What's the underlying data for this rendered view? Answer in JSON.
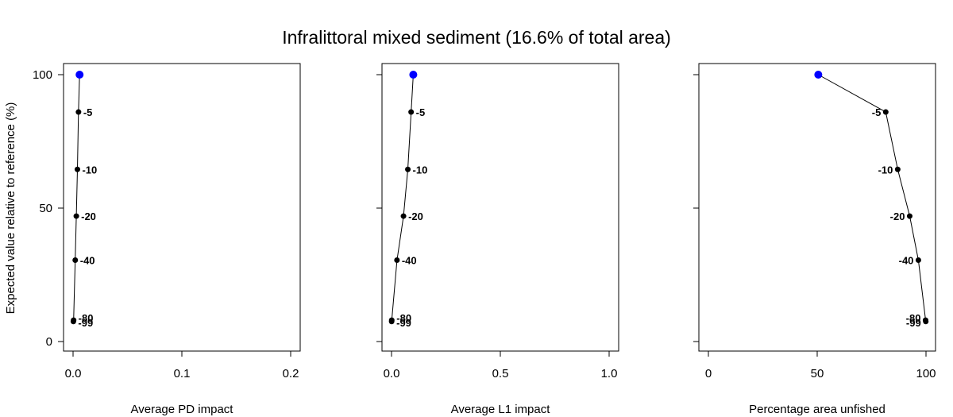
{
  "title": "Infralittoral mixed sediment (16.6% of total area)",
  "ylabel": "Expected value relative to reference (%)",
  "yticks": [
    "0",
    "50",
    "100"
  ],
  "colors": {
    "reference_point": "#0000ff",
    "points": "#000000",
    "line": "#000000"
  },
  "chart_data": [
    {
      "type": "line",
      "xlabel": "Average PD impact",
      "xlim": [
        0,
        0.2
      ],
      "ylim": [
        0,
        100
      ],
      "xticks": [
        "0.0",
        "0.1",
        "0.2"
      ],
      "reference": {
        "x": 0.006,
        "y": 100
      },
      "points": [
        {
          "label": "-5",
          "x": 0.005,
          "y": 86
        },
        {
          "label": "-10",
          "x": 0.004,
          "y": 64.5
        },
        {
          "label": "-20",
          "x": 0.003,
          "y": 47
        },
        {
          "label": "-40",
          "x": 0.002,
          "y": 30.5
        },
        {
          "label": "-80",
          "x": 0.0005,
          "y": 8
        },
        {
          "label": "-99",
          "x": 0.0003,
          "y": 7.5
        }
      ]
    },
    {
      "type": "line",
      "xlabel": "Average L1 impact",
      "xlim": [
        0,
        1.0
      ],
      "ylim": [
        0,
        100
      ],
      "xticks": [
        "0.0",
        "0.5",
        "1.0"
      ],
      "reference": {
        "x": 0.1,
        "y": 100
      },
      "points": [
        {
          "label": "-5",
          "x": 0.09,
          "y": 86
        },
        {
          "label": "-10",
          "x": 0.075,
          "y": 64.5
        },
        {
          "label": "-20",
          "x": 0.055,
          "y": 47
        },
        {
          "label": "-40",
          "x": 0.025,
          "y": 30.5
        },
        {
          "label": "-80",
          "x": 0.001,
          "y": 8
        },
        {
          "label": "-99",
          "x": 0.0005,
          "y": 7.5
        }
      ]
    },
    {
      "type": "line",
      "xlabel": "Percentage area unfished",
      "xlim": [
        0,
        100
      ],
      "ylim": [
        0,
        100
      ],
      "xticks": [
        "0",
        "50",
        "100"
      ],
      "reference": {
        "x": 50.5,
        "y": 100
      },
      "points": [
        {
          "label": "-5",
          "x": 81.5,
          "y": 86
        },
        {
          "label": "-10",
          "x": 87,
          "y": 64.5
        },
        {
          "label": "-20",
          "x": 92.5,
          "y": 47
        },
        {
          "label": "-40",
          "x": 96.5,
          "y": 30.5
        },
        {
          "label": "-80",
          "x": 99.8,
          "y": 8
        },
        {
          "label": "-99",
          "x": 99.9,
          "y": 7.5
        }
      ]
    }
  ]
}
